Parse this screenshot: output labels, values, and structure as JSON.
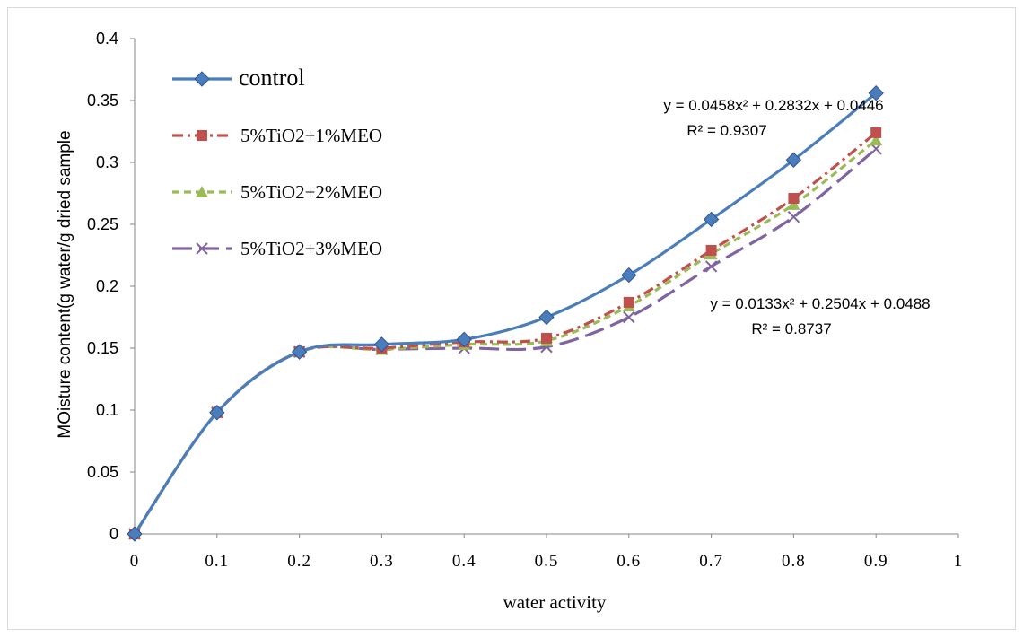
{
  "chart_data": {
    "type": "line",
    "xlabel": "water activity",
    "ylabel": "MOisture content(g water/g dried sample",
    "xlim": [
      0,
      1
    ],
    "ylim": [
      0,
      0.4
    ],
    "x_ticks": [
      "0",
      "0.1",
      "0.2",
      "0.3",
      "0.4",
      "0.5",
      "0.6",
      "0.7",
      "0.8",
      "0.9",
      "1"
    ],
    "y_ticks": [
      "0",
      "0.05",
      "0.1",
      "0.15",
      "0.2",
      "0.25",
      "0.3",
      "0.35",
      "0.4"
    ],
    "x": [
      0,
      0.1,
      0.2,
      0.3,
      0.4,
      0.5,
      0.6,
      0.7,
      0.8,
      0.9
    ],
    "grid": false,
    "legend_position": "top-left",
    "series": [
      {
        "name": "control",
        "color": "#4a7ebb",
        "dash": "solid",
        "marker": "diamond",
        "values": [
          0,
          0.098,
          0.147,
          0.153,
          0.157,
          0.175,
          0.209,
          0.254,
          0.302,
          0.356
        ]
      },
      {
        "name": "5%TiO2+1%MEO",
        "color": "#c0504d",
        "dash": "dashdot",
        "marker": "square",
        "values": [
          0,
          0.098,
          0.147,
          0.15,
          0.155,
          0.158,
          0.187,
          0.229,
          0.271,
          0.324
        ]
      },
      {
        "name": "5%TiO2+2%MEO",
        "color": "#9bbb59",
        "dash": "dash",
        "marker": "triangle",
        "values": [
          0,
          0.098,
          0.147,
          0.149,
          0.153,
          0.156,
          0.184,
          0.226,
          0.266,
          0.318
        ]
      },
      {
        "name": "5%TiO2+3%MEO",
        "color": "#8064a2",
        "dash": "longdash",
        "marker": "x",
        "values": [
          0,
          0.098,
          0.147,
          0.149,
          0.15,
          0.151,
          0.175,
          0.216,
          0.256,
          0.311
        ]
      }
    ],
    "annotations": [
      {
        "line1": "y = 0.0458x² + 0.2832x + 0.0446",
        "line2": "R² = 0.9307"
      },
      {
        "line1": "y = 0.0133x² + 0.2504x + 0.0488",
        "line2": "R² = 0.8737"
      }
    ]
  }
}
